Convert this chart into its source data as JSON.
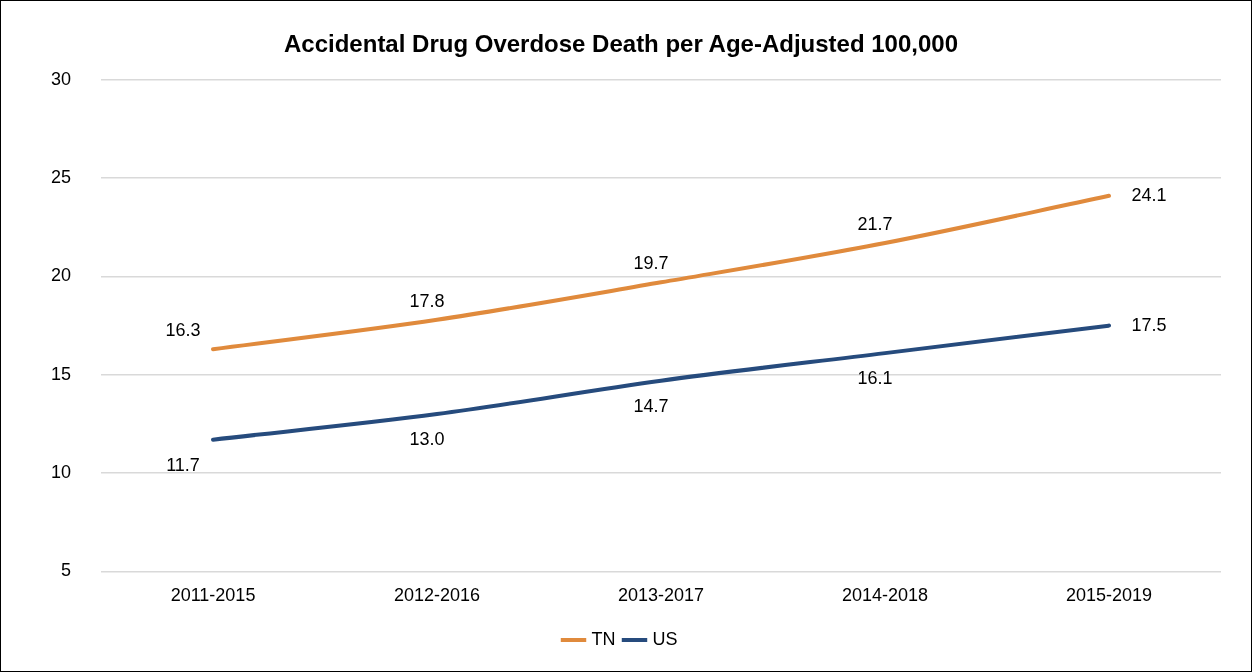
{
  "chart_data": {
    "type": "line",
    "title": "Accidental Drug Overdose Death per Age-Adjusted 100,000",
    "categories": [
      "2011-2015",
      "2012-2016",
      "2013-2017",
      "2014-2018",
      "2015-2019"
    ],
    "series": [
      {
        "name": "TN",
        "color": "#e08a3c",
        "values": [
          16.3,
          17.8,
          19.7,
          21.7,
          24.1
        ]
      },
      {
        "name": "US",
        "color": "#264b7d",
        "values": [
          11.7,
          13.0,
          14.7,
          16.1,
          17.5
        ]
      }
    ],
    "value_labels": [
      [
        "16.3",
        "17.8",
        "19.7",
        "21.7",
        "24.1"
      ],
      [
        "11.7",
        "13.0",
        "14.7",
        "16.1",
        "17.5"
      ]
    ],
    "ylim": [
      5,
      30
    ],
    "yticks": [
      5,
      10,
      15,
      20,
      25,
      30
    ],
    "grid": "y",
    "legend": "bottom",
    "marker": "none",
    "line_style": "solid"
  }
}
